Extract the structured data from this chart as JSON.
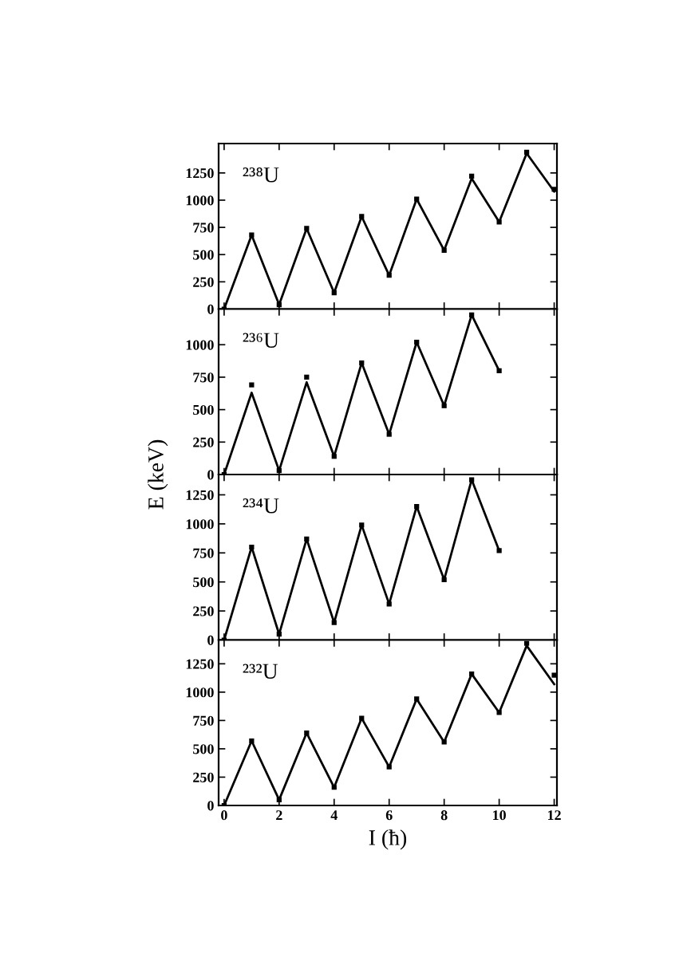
{
  "chart_data": [
    {
      "type": "line",
      "title": "²³⁸U",
      "x": [
        0,
        1,
        2,
        3,
        4,
        5,
        6,
        7,
        8,
        9,
        10,
        11,
        12
      ],
      "xlim": [
        -0.2,
        12.1
      ],
      "xticks": [
        0,
        2,
        4,
        6,
        8,
        10,
        12
      ],
      "ylim": [
        0,
        1520
      ],
      "yticks": [
        0,
        250,
        500,
        750,
        1000,
        1250
      ],
      "tick_labels": "y",
      "series": [
        {
          "color": "#000000",
          "marker": "none",
          "line_style": "solid",
          "values": [
            0,
            680,
            40,
            740,
            150,
            850,
            310,
            1010,
            540,
            1200,
            800,
            1430,
            1080
          ]
        },
        {
          "type": "scatter",
          "color": "#000000",
          "marker": "square",
          "values": [
            0,
            680,
            40,
            740,
            150,
            850,
            310,
            1010,
            540,
            1220,
            800,
            1440,
            1100
          ]
        }
      ]
    },
    {
      "type": "line",
      "title": "²³⁶U",
      "ylabel": "E (keV)",
      "x": [
        0,
        1,
        2,
        3,
        4,
        5,
        6,
        7,
        8,
        9,
        10
      ],
      "xlim": [
        -0.2,
        12.1
      ],
      "xticks": [
        0,
        2,
        4,
        6,
        8,
        10,
        12
      ],
      "ylim": [
        0,
        1275
      ],
      "yticks": [
        0,
        250,
        500,
        750,
        1000
      ],
      "tick_labels": "y",
      "series": [
        {
          "color": "#000000",
          "marker": "none",
          "line_style": "solid",
          "values": [
            0,
            630,
            30,
            710,
            140,
            860,
            310,
            1020,
            530,
            1230,
            800
          ]
        },
        {
          "type": "scatter",
          "color": "#000000",
          "marker": "square",
          "values": [
            0,
            690,
            30,
            750,
            140,
            860,
            310,
            1020,
            530,
            1230,
            800
          ]
        }
      ]
    },
    {
      "type": "line",
      "title": "²³⁴U",
      "x": [
        0,
        1,
        2,
        3,
        4,
        5,
        6,
        7,
        8,
        9,
        10
      ],
      "xlim": [
        -0.2,
        12.1
      ],
      "xticks": [
        0,
        2,
        4,
        6,
        8,
        10,
        12
      ],
      "ylim": [
        0,
        1425
      ],
      "yticks": [
        0,
        250,
        500,
        750,
        1000,
        1250
      ],
      "tick_labels": "y",
      "series": [
        {
          "color": "#000000",
          "marker": "none",
          "line_style": "solid",
          "values": [
            0,
            800,
            50,
            870,
            150,
            990,
            310,
            1150,
            520,
            1380,
            770
          ]
        },
        {
          "type": "scatter",
          "color": "#000000",
          "marker": "square",
          "values": [
            0,
            800,
            50,
            870,
            150,
            990,
            310,
            1150,
            520,
            1380,
            770
          ]
        }
      ]
    },
    {
      "type": "line",
      "title": "²³²U",
      "xlabel": "I (ħ)",
      "x": [
        0,
        1,
        2,
        3,
        4,
        5,
        6,
        7,
        8,
        9,
        10,
        11,
        12
      ],
      "xlim": [
        -0.2,
        12.1
      ],
      "xticks": [
        0,
        2,
        4,
        6,
        8,
        10,
        12
      ],
      "ylim": [
        0,
        1460
      ],
      "yticks": [
        0,
        250,
        500,
        750,
        1000,
        1250
      ],
      "series": [
        {
          "color": "#000000",
          "marker": "none",
          "line_style": "solid",
          "values": [
            0,
            570,
            50,
            640,
            160,
            770,
            340,
            940,
            560,
            1160,
            820,
            1410,
            1070
          ]
        },
        {
          "type": "scatter",
          "color": "#000000",
          "marker": "square",
          "values": [
            0,
            570,
            50,
            640,
            160,
            770,
            340,
            940,
            560,
            1160,
            820,
            1430,
            1150
          ]
        }
      ]
    }
  ]
}
